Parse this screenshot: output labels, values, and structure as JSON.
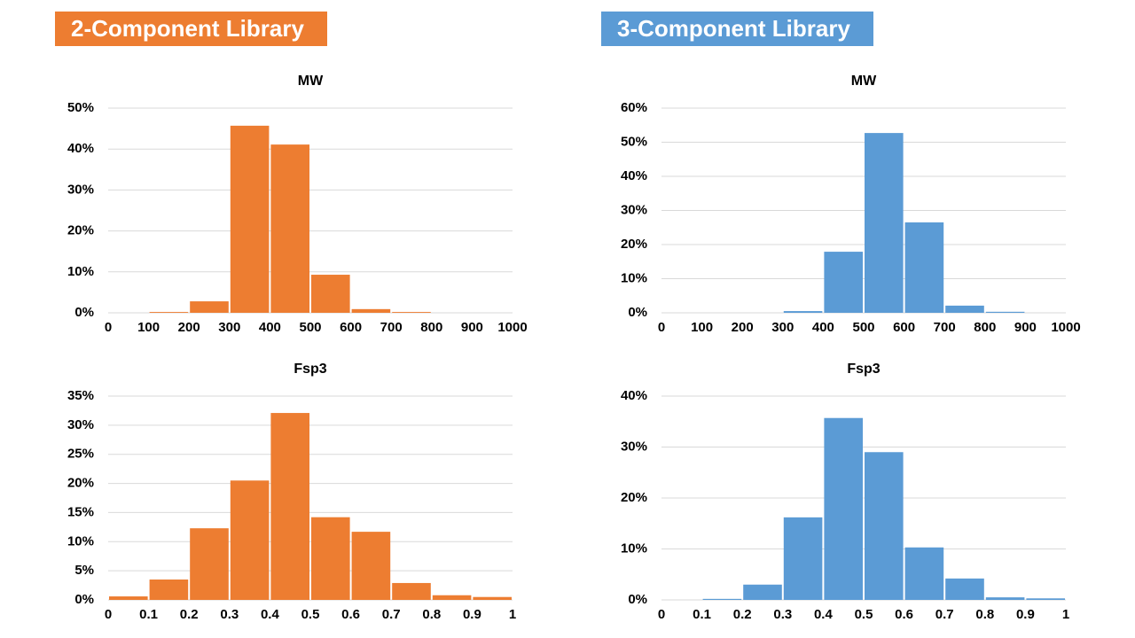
{
  "headers": [
    "2-Component Library",
    "3-Component Library"
  ],
  "chart_data": [
    {
      "type": "histogram",
      "title": "MW",
      "color": "#ed7d31",
      "grid": true,
      "bins": [
        0,
        100,
        200,
        300,
        400,
        500,
        600,
        700,
        800,
        900,
        1000
      ],
      "values": [
        0,
        0.2,
        2.8,
        45.7,
        41.1,
        9.3,
        0.9,
        0.2,
        0,
        0
      ],
      "xlim": [
        0,
        1000
      ],
      "xticks": [
        0,
        100,
        200,
        300,
        400,
        500,
        600,
        700,
        800,
        900,
        1000
      ],
      "ylim": [
        0,
        50
      ],
      "yticks": [
        {
          "value": 0,
          "label": "0%"
        },
        {
          "value": 10,
          "label": "10%"
        },
        {
          "value": 20,
          "label": "20%"
        },
        {
          "value": 30,
          "label": "30%"
        },
        {
          "value": 40,
          "label": "40%"
        },
        {
          "value": 50,
          "label": "50%"
        }
      ]
    },
    {
      "type": "histogram",
      "title": "MW",
      "color": "#5b9bd5",
      "grid": true,
      "bins": [
        0,
        100,
        200,
        300,
        400,
        500,
        600,
        700,
        800,
        900,
        1000
      ],
      "values": [
        0,
        0,
        0,
        0.5,
        17.9,
        52.7,
        26.5,
        2.1,
        0.3,
        0
      ],
      "xlim": [
        0,
        1000
      ],
      "xticks": [
        0,
        100,
        200,
        300,
        400,
        500,
        600,
        700,
        800,
        900,
        1000
      ],
      "ylim": [
        0,
        60
      ],
      "yticks": [
        {
          "value": 0,
          "label": "0%"
        },
        {
          "value": 10,
          "label": "10%"
        },
        {
          "value": 20,
          "label": "20%"
        },
        {
          "value": 30,
          "label": "30%"
        },
        {
          "value": 40,
          "label": "40%"
        },
        {
          "value": 50,
          "label": "50%"
        },
        {
          "value": 60,
          "label": "60%"
        }
      ]
    },
    {
      "type": "histogram",
      "title": "Fsp3",
      "color": "#ed7d31",
      "grid": true,
      "bins": [
        0,
        0.1,
        0.2,
        0.3,
        0.4,
        0.5,
        0.6,
        0.7,
        0.8,
        0.9,
        1
      ],
      "values": [
        0.6,
        3.5,
        12.3,
        20.5,
        32.1,
        14.2,
        11.7,
        2.9,
        0.8,
        0.5
      ],
      "xlim": [
        0,
        1
      ],
      "xticks": [
        0,
        0.1,
        0.2,
        0.3,
        0.4,
        0.5,
        0.6,
        0.7,
        0.8,
        0.9,
        1
      ],
      "ylim": [
        0,
        35
      ],
      "yticks": [
        {
          "value": 0,
          "label": "0%"
        },
        {
          "value": 5,
          "label": "5%"
        },
        {
          "value": 10,
          "label": "10%"
        },
        {
          "value": 15,
          "label": "15%"
        },
        {
          "value": 20,
          "label": "20%"
        },
        {
          "value": 25,
          "label": "25%"
        },
        {
          "value": 30,
          "label": "30%"
        },
        {
          "value": 35,
          "label": "35%"
        }
      ]
    },
    {
      "type": "histogram",
      "title": "Fsp3",
      "color": "#5b9bd5",
      "grid": true,
      "bins": [
        0,
        0.1,
        0.2,
        0.3,
        0.4,
        0.5,
        0.6,
        0.7,
        0.8,
        0.9,
        1
      ],
      "values": [
        0,
        0.2,
        3.0,
        16.2,
        35.7,
        29.0,
        10.3,
        4.2,
        0.5,
        0.3
      ],
      "xlim": [
        0,
        1
      ],
      "xticks": [
        0,
        0.1,
        0.2,
        0.3,
        0.4,
        0.5,
        0.6,
        0.7,
        0.8,
        0.9,
        1
      ],
      "ylim": [
        0,
        40
      ],
      "yticks": [
        {
          "value": 0,
          "label": "0%"
        },
        {
          "value": 10,
          "label": "10%"
        },
        {
          "value": 20,
          "label": "20%"
        },
        {
          "value": 30,
          "label": "30%"
        },
        {
          "value": 40,
          "label": "40%"
        }
      ]
    }
  ]
}
